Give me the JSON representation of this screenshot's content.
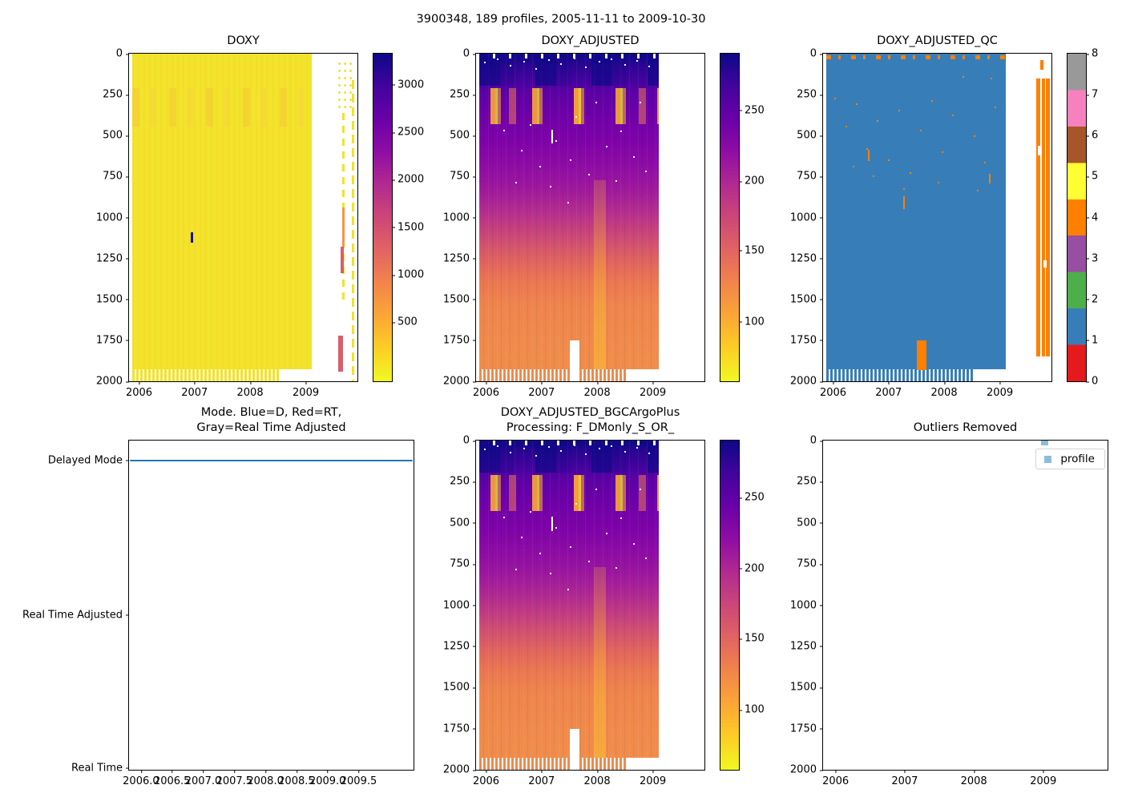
{
  "figure": {
    "title": "3900348, 189 profiles, 2005-11-11 to 2009-10-30"
  },
  "subplots": {
    "doxy": {
      "title": "DOXY",
      "yticks": [
        {
          "label": "0",
          "pct": 0
        },
        {
          "label": "250",
          "pct": 12.5
        },
        {
          "label": "500",
          "pct": 25
        },
        {
          "label": "750",
          "pct": 37.5
        },
        {
          "label": "1000",
          "pct": 50
        },
        {
          "label": "1250",
          "pct": 62.5
        },
        {
          "label": "1500",
          "pct": 75
        },
        {
          "label": "1750",
          "pct": 87.5
        },
        {
          "label": "2000",
          "pct": 100
        }
      ],
      "xticks": [
        {
          "label": "2006",
          "pct": 4.4
        },
        {
          "label": "2007",
          "pct": 28.7
        },
        {
          "label": "2008",
          "pct": 53.0
        },
        {
          "label": "2009",
          "pct": 77.4
        }
      ]
    },
    "doxy_adjusted": {
      "title": "DOXY_ADJUSTED",
      "yticks": [
        {
          "label": "0",
          "pct": 0
        },
        {
          "label": "250",
          "pct": 12.5
        },
        {
          "label": "500",
          "pct": 25
        },
        {
          "label": "750",
          "pct": 37.5
        },
        {
          "label": "1000",
          "pct": 50
        },
        {
          "label": "1250",
          "pct": 62.5
        },
        {
          "label": "1500",
          "pct": 75
        },
        {
          "label": "1750",
          "pct": 87.5
        },
        {
          "label": "2000",
          "pct": 100
        }
      ],
      "xticks": [
        {
          "label": "2006",
          "pct": 4.4
        },
        {
          "label": "2007",
          "pct": 28.7
        },
        {
          "label": "2008",
          "pct": 53.0
        },
        {
          "label": "2009",
          "pct": 77.4
        }
      ]
    },
    "doxy_adjusted_qc": {
      "title": "DOXY_ADJUSTED_QC",
      "yticks": [
        {
          "label": "0",
          "pct": 0
        },
        {
          "label": "250",
          "pct": 12.5
        },
        {
          "label": "500",
          "pct": 25
        },
        {
          "label": "750",
          "pct": 37.5
        },
        {
          "label": "1000",
          "pct": 50
        },
        {
          "label": "1250",
          "pct": 62.5
        },
        {
          "label": "1500",
          "pct": 75
        },
        {
          "label": "1750",
          "pct": 87.5
        },
        {
          "label": "2000",
          "pct": 100
        }
      ],
      "xticks": [
        {
          "label": "2006",
          "pct": 4.4
        },
        {
          "label": "2007",
          "pct": 28.7
        },
        {
          "label": "2008",
          "pct": 53.0
        },
        {
          "label": "2009",
          "pct": 77.4
        }
      ]
    },
    "mode": {
      "title": "Mode. Blue=D, Red=RT,\nGray=Real Time Adjusted",
      "yticks": [
        {
          "label": "Delayed Mode",
          "pct": 6
        },
        {
          "label": "Real Time Adjusted",
          "pct": 53
        },
        {
          "label": "Real Time",
          "pct": 99.5
        }
      ],
      "xticks": [
        {
          "label": "2006.0",
          "pct": 4.2
        },
        {
          "label": "2006.5",
          "pct": 15.13
        },
        {
          "label": "2007.0",
          "pct": 26.06
        },
        {
          "label": "2007.5",
          "pct": 36.99
        },
        {
          "label": "2008.0",
          "pct": 47.92
        },
        {
          "label": "2008.5",
          "pct": 58.85
        },
        {
          "label": "2009.0",
          "pct": 69.78
        },
        {
          "label": "2009.5",
          "pct": 80.71
        }
      ]
    },
    "bgc": {
      "title": "DOXY_ADJUSTED_BGCArgoPlus\nProcessing: F_DMonly_S_OR_",
      "yticks": [
        {
          "label": "0",
          "pct": 0
        },
        {
          "label": "250",
          "pct": 12.5
        },
        {
          "label": "500",
          "pct": 25
        },
        {
          "label": "750",
          "pct": 37.5
        },
        {
          "label": "1000",
          "pct": 50
        },
        {
          "label": "1250",
          "pct": 62.5
        },
        {
          "label": "1500",
          "pct": 75
        },
        {
          "label": "1750",
          "pct": 87.5
        },
        {
          "label": "2000",
          "pct": 100
        }
      ],
      "xticks": [
        {
          "label": "2006",
          "pct": 4.4
        },
        {
          "label": "2007",
          "pct": 28.7
        },
        {
          "label": "2008",
          "pct": 53.0
        },
        {
          "label": "2009",
          "pct": 77.4
        }
      ]
    },
    "outliers": {
      "title": "Outliers Removed",
      "legend_label": "profile",
      "yticks": [
        {
          "label": "0",
          "pct": 0
        },
        {
          "label": "250",
          "pct": 12.5
        },
        {
          "label": "500",
          "pct": 25
        },
        {
          "label": "750",
          "pct": 37.5
        },
        {
          "label": "1000",
          "pct": 50
        },
        {
          "label": "1250",
          "pct": 62.5
        },
        {
          "label": "1500",
          "pct": 75
        },
        {
          "label": "1750",
          "pct": 87.5
        },
        {
          "label": "2000",
          "pct": 100
        }
      ],
      "xticks": [
        {
          "label": "2006",
          "pct": 4.4
        },
        {
          "label": "2007",
          "pct": 28.7
        },
        {
          "label": "2008",
          "pct": 53.0
        },
        {
          "label": "2009",
          "pct": 77.4
        }
      ]
    }
  },
  "colorbars": {
    "cb_doxy": {
      "ticks": [
        {
          "label": "3000",
          "pct": 9.5
        },
        {
          "label": "2500",
          "pct": 24
        },
        {
          "label": "2000",
          "pct": 38.5
        },
        {
          "label": "1500",
          "pct": 53
        },
        {
          "label": "1000",
          "pct": 67.5
        },
        {
          "label": "500",
          "pct": 82
        }
      ]
    },
    "cb_adjusted": {
      "ticks": [
        {
          "label": "250",
          "pct": 17.3
        },
        {
          "label": "200",
          "pct": 38.9
        },
        {
          "label": "150",
          "pct": 60.1
        },
        {
          "label": "100",
          "pct": 81.8
        }
      ]
    },
    "cb_qc": {
      "ticks": [
        {
          "label": "8",
          "pct": 0
        },
        {
          "label": "7",
          "pct": 12.5
        },
        {
          "label": "6",
          "pct": 25
        },
        {
          "label": "5",
          "pct": 37.5
        },
        {
          "label": "4",
          "pct": 50
        },
        {
          "label": "3",
          "pct": 62.5
        },
        {
          "label": "2",
          "pct": 75
        },
        {
          "label": "1",
          "pct": 87.5
        },
        {
          "label": "0",
          "pct": 100
        }
      ]
    },
    "cb_bgc": {
      "ticks": [
        {
          "label": "250",
          "pct": 17.3
        },
        {
          "label": "200",
          "pct": 38.9
        },
        {
          "label": "150",
          "pct": 60.1
        },
        {
          "label": "100",
          "pct": 81.8
        }
      ]
    }
  },
  "colors": {
    "plasma_low": "#f0f921",
    "plasma_high": "#0d0887",
    "qc_palette": {
      "0": "#e41a1c",
      "1": "#377eb8",
      "2": "#4daf4a",
      "3": "#984ea3",
      "4": "#ff7f00",
      "5": "#ffff33",
      "6": "#a65628",
      "7": "#f781bf",
      "8": "#999999"
    },
    "mode_line": "#1f77b4",
    "profile_marker": "#8cbcdd"
  },
  "chart_data": [
    {
      "type": "heatmap",
      "title": "DOXY",
      "x_range": [
        2005.82,
        2009.93
      ],
      "x_ticks": [
        2006,
        2007,
        2008,
        2009
      ],
      "y_range": [
        0,
        2000
      ],
      "y_ticks": [
        0,
        250,
        500,
        750,
        1000,
        1250,
        1500,
        1750,
        2000
      ],
      "y_inverted": true,
      "colorbar_ticks": [
        500,
        1000,
        1500,
        2000,
        2500,
        3000
      ],
      "colormap": "plasma reversed on colorbar (yellow=low at bottom, dark blue=high at top)",
      "summary": "Nearly uniform low DOXY (~150-250, yellow) for all depths 0-2000 dbar across dense profiles from 2005.87 to 2009.05; faint slightly-orange streaks near 250-450 dbar; one dark high outlier (~3300) near 2007.0 at ~1100-1170 dbar; sparse late-2009 profiles (2009.4-2009.85) show yellow dashes plus orange (~900-1200) and red (~1200-1500) segments; profile bottoms form a comb pattern 1930-2000 dbar until mid-2008."
    },
    {
      "type": "heatmap",
      "title": "DOXY_ADJUSTED",
      "x_range": [
        2005.82,
        2009.93
      ],
      "x_ticks": [
        2006,
        2007,
        2008,
        2009
      ],
      "y_range": [
        0,
        2000
      ],
      "y_ticks": [
        0,
        250,
        500,
        750,
        1000,
        1250,
        1500,
        1750,
        2000
      ],
      "y_inverted": true,
      "colorbar_ticks": [
        100,
        150,
        200,
        250
      ],
      "colormap": "plasma (dark blue=high ~280, yellow=low ~60)",
      "depth_profile_approx": {
        "0": 275,
        "100": 250,
        "300": "75-230 oxygen-minimum blobs (orange/yellow)",
        "500": 220,
        "750": 200,
        "1000": 165,
        "1250": 135,
        "1500": 118,
        "1750": 112,
        "2000": 108
      },
      "summary": "Dark navy surface band, purple upper ocean with bright orange/yellow oxygen-minimum blobs at ~230-430 dbar, gradual purple-to-orange transition below 1000 dbar; white data gap 1750-2000 dbar near 2007.5-2007.65; data end at 2009.05; scattered white missing-value specks."
    },
    {
      "type": "heatmap",
      "title": "DOXY_ADJUSTED_QC",
      "x_range": [
        2005.82,
        2009.93
      ],
      "x_ticks": [
        2006,
        2007,
        2008,
        2009
      ],
      "y_range": [
        0,
        2000
      ],
      "y_ticks": [
        0,
        250,
        500,
        750,
        1000,
        1250,
        1500,
        1750,
        2000
      ],
      "y_inverted": true,
      "colorbar_ticks": [
        0,
        1,
        2,
        3,
        4,
        5,
        6,
        7,
        8
      ],
      "colormap": "9-color discrete Set1-style: 0 red, 1 blue, 2 green, 3 purple, 4 orange, 5 yellow, 6 brown, 7 pink, 8 gray",
      "summary": "QC flag 1 (blue) nearly everywhere from 2005.87 to 2009.05; QC flag 4 (orange) dashes along the surface row, scattered specks in upper 500 dbar, an orange block 1750-1930 dbar near 2007.5-2007.65, and full-depth orange bars for sparse late-2009 profiles (2009.55-2009.85)."
    },
    {
      "type": "line",
      "title": "Mode. Blue=D, Red=RT, Gray=Real Time Adjusted",
      "x_range": [
        2005.81,
        2009.88
      ],
      "x_ticks": [
        2006.0,
        2006.5,
        2007.0,
        2007.5,
        2008.0,
        2008.5,
        2009.0,
        2009.5
      ],
      "y_categories": [
        "Real Time",
        "Real Time Adjusted",
        "Delayed Mode"
      ],
      "series": [
        {
          "name": "mode",
          "color": "#1f77b4",
          "x": [
            2005.87,
            2009.83
          ],
          "y": [
            "Delayed Mode",
            "Delayed Mode"
          ]
        }
      ],
      "summary": "All 189 profiles are in Delayed Mode: a single flat blue line at the Delayed Mode level spanning the whole record."
    },
    {
      "type": "heatmap",
      "title": "DOXY_ADJUSTED_BGCArgoPlus Processing: F_DMonly_S_OR_",
      "x_range": [
        2005.82,
        2009.93
      ],
      "x_ticks": [
        2006,
        2007,
        2008,
        2009
      ],
      "y_range": [
        0,
        2000
      ],
      "y_ticks": [
        0,
        250,
        500,
        750,
        1000,
        1250,
        1500,
        1750,
        2000
      ],
      "y_inverted": true,
      "colorbar_ticks": [
        100,
        150,
        200,
        250
      ],
      "colormap": "plasma (same as DOXY_ADJUSTED)",
      "summary": "Visually identical to DOXY_ADJUSTED: dark surface band, orange/yellow oxygen-minimum blobs at ~230-430 dbar, orange deep layer, white gap 1750-2000 dbar near 2007.5, data end at 2009.05."
    },
    {
      "type": "scatter",
      "title": "Outliers Removed",
      "x_range": [
        2005.82,
        2009.93
      ],
      "x_ticks": [
        2006,
        2007,
        2008,
        2009
      ],
      "y_range": [
        0,
        2000
      ],
      "y_ticks": [
        0,
        250,
        500,
        750,
        1000,
        1250,
        1500,
        1750,
        2000
      ],
      "y_inverted": true,
      "legend": [
        "profile"
      ],
      "points": [
        {
          "x": 2008.85,
          "y": 0
        }
      ],
      "marker_color": "#8cbcdd",
      "summary": "Almost empty panel; one light-blue square marker at the top edge near 2008.85, legend box top-right labeled 'profile'."
    }
  ]
}
